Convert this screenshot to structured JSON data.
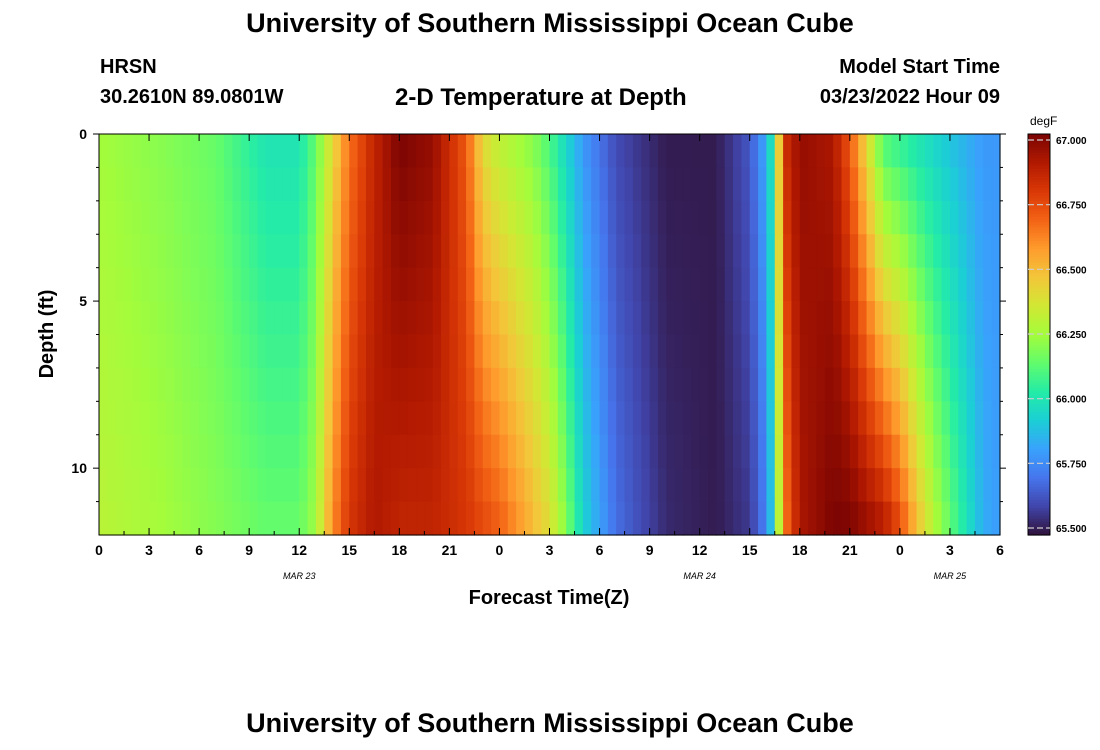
{
  "header": {
    "title": "University of Southern Mississippi Ocean Cube",
    "station": "HRSN",
    "coords": "30.2610N  89.0801W",
    "subtitle": "2-D Temperature at Depth",
    "model_start_label": "Model Start Time",
    "model_start_value": "03/23/2022 Hour 09"
  },
  "footer": {
    "title": "University of Southern Mississippi Ocean Cube"
  },
  "chart_data": {
    "type": "heatmap",
    "title": "2-D Temperature at Depth",
    "xlabel": "Forecast Time(Z)",
    "ylabel": "Depth (ft)",
    "x_hours": [
      0,
      54
    ],
    "x_tick_labels": [
      "0",
      "3",
      "6",
      "9",
      "12",
      "15",
      "18",
      "21",
      "0",
      "3",
      "6",
      "9",
      "12",
      "15",
      "18",
      "21",
      "0",
      "3",
      "6"
    ],
    "date_labels": [
      {
        "text": "MAR 23",
        "hour": 12
      },
      {
        "text": "MAR 24",
        "hour": 36
      },
      {
        "text": "MAR 25",
        "hour": 51
      }
    ],
    "y_ticks": [
      0,
      5,
      10
    ],
    "ylim": [
      0,
      12
    ],
    "colorbar": {
      "unit": "degF",
      "min": 65.5,
      "max": 67.0,
      "ticks": [
        "67.000",
        "66.750",
        "66.500",
        "66.250",
        "66.000",
        "65.750",
        "65.500"
      ],
      "colors": [
        "#30123b",
        "#4145ab",
        "#4675ed",
        "#39a2fc",
        "#1bcfd4",
        "#24eca6",
        "#61fc6c",
        "#a4fc3b",
        "#d1e834",
        "#f3c63a",
        "#fe9b2d",
        "#f36315",
        "#d93806",
        "#b11901",
        "#7a0403"
      ]
    },
    "series_note": "",
    "profiles": [
      {
        "hour": 0,
        "top": 66.25,
        "bottom": 66.3
      },
      {
        "hour": 4,
        "top": 66.2,
        "bottom": 66.25
      },
      {
        "hour": 7,
        "top": 66.15,
        "bottom": 66.2
      },
      {
        "hour": 10,
        "top": 66.0,
        "bottom": 66.15
      },
      {
        "hour": 12,
        "top": 66.0,
        "bottom": 66.15
      },
      {
        "hour": 13,
        "top": 66.15,
        "bottom": 66.25
      },
      {
        "hour": 14,
        "top": 66.4,
        "bottom": 66.6
      },
      {
        "hour": 15,
        "top": 66.65,
        "bottom": 66.8
      },
      {
        "hour": 16.5,
        "top": 66.85,
        "bottom": 66.9
      },
      {
        "hour": 18,
        "top": 67.0,
        "bottom": 66.85
      },
      {
        "hour": 20,
        "top": 66.95,
        "bottom": 66.85
      },
      {
        "hour": 22,
        "top": 66.7,
        "bottom": 66.8
      },
      {
        "hour": 23,
        "top": 66.4,
        "bottom": 66.75
      },
      {
        "hour": 24,
        "top": 66.3,
        "bottom": 66.7
      },
      {
        "hour": 26,
        "top": 66.2,
        "bottom": 66.5
      },
      {
        "hour": 27,
        "top": 66.1,
        "bottom": 66.4
      },
      {
        "hour": 28,
        "top": 65.95,
        "bottom": 66.2
      },
      {
        "hour": 29,
        "top": 65.8,
        "bottom": 65.95
      },
      {
        "hour": 31,
        "top": 65.62,
        "bottom": 65.7
      },
      {
        "hour": 34,
        "top": 65.52,
        "bottom": 65.55
      },
      {
        "hour": 37,
        "top": 65.52,
        "bottom": 65.52
      },
      {
        "hour": 39,
        "top": 65.65,
        "bottom": 65.58
      },
      {
        "hour": 40,
        "top": 65.85,
        "bottom": 65.75
      },
      {
        "hour": 40.5,
        "top": 66.1,
        "bottom": 66.0
      },
      {
        "hour": 41,
        "top": 66.8,
        "bottom": 66.6
      },
      {
        "hour": 42,
        "top": 66.95,
        "bottom": 66.9
      },
      {
        "hour": 44,
        "top": 66.9,
        "bottom": 67.0
      },
      {
        "hour": 45,
        "top": 66.7,
        "bottom": 67.0
      },
      {
        "hour": 46,
        "top": 66.4,
        "bottom": 66.95
      },
      {
        "hour": 47,
        "top": 66.1,
        "bottom": 66.9
      },
      {
        "hour": 48,
        "top": 66.05,
        "bottom": 66.75
      },
      {
        "hour": 49,
        "top": 66.0,
        "bottom": 66.5
      },
      {
        "hour": 50,
        "top": 65.95,
        "bottom": 66.3
      },
      {
        "hour": 51,
        "top": 65.9,
        "bottom": 66.15
      },
      {
        "hour": 52,
        "top": 65.85,
        "bottom": 66.0
      },
      {
        "hour": 53,
        "top": 65.8,
        "bottom": 65.85
      },
      {
        "hour": 54,
        "top": 65.8,
        "bottom": 65.8
      }
    ]
  }
}
